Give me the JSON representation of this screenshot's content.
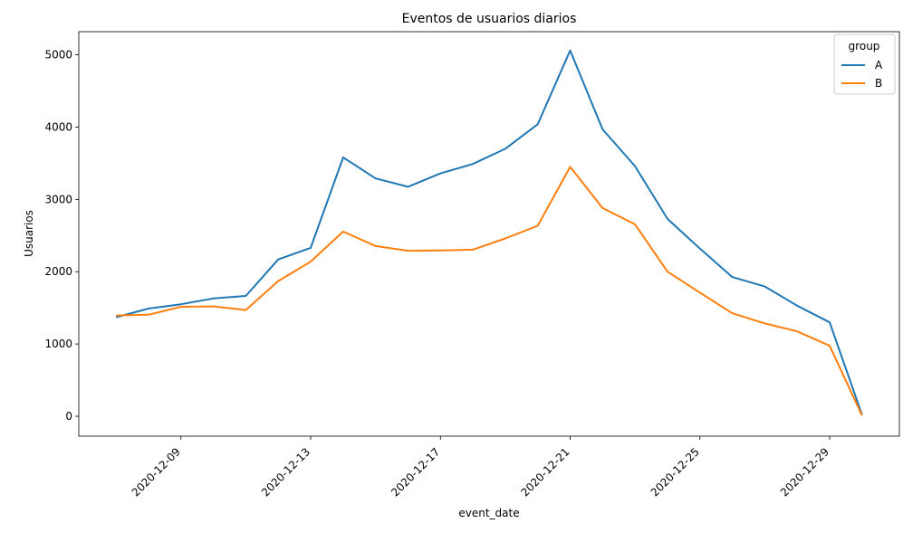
{
  "chart_data": {
    "type": "line",
    "title": "Eventos de usuarios diarios",
    "xlabel": "event_date",
    "ylabel": "Usuarios",
    "x": [
      "2020-12-07",
      "2020-12-08",
      "2020-12-09",
      "2020-12-10",
      "2020-12-11",
      "2020-12-12",
      "2020-12-13",
      "2020-12-14",
      "2020-12-15",
      "2020-12-16",
      "2020-12-17",
      "2020-12-18",
      "2020-12-19",
      "2020-12-20",
      "2020-12-21",
      "2020-12-22",
      "2020-12-23",
      "2020-12-24",
      "2020-12-25",
      "2020-12-26",
      "2020-12-27",
      "2020-12-28",
      "2020-12-29",
      "2020-12-30"
    ],
    "x_ticks": [
      "2020-12-09",
      "2020-12-13",
      "2020-12-17",
      "2020-12-21",
      "2020-12-25",
      "2020-12-29"
    ],
    "y_ticks": [
      0,
      1000,
      2000,
      3000,
      4000,
      5000
    ],
    "ylim": [
      -275,
      5320
    ],
    "series": [
      {
        "name": "A",
        "color": "#1f77b4",
        "values": [
          1370,
          1490,
          1550,
          1630,
          1665,
          2170,
          2330,
          3580,
          3290,
          3175,
          3360,
          3490,
          3700,
          4040,
          5060,
          3970,
          3460,
          2730,
          2320,
          1925,
          1795,
          1530,
          1300,
          20
        ]
      },
      {
        "name": "B",
        "color": "#ff7f0e",
        "values": [
          1395,
          1405,
          1515,
          1520,
          1470,
          1870,
          2140,
          2555,
          2355,
          2290,
          2295,
          2305,
          2460,
          2635,
          3450,
          2880,
          2655,
          2000,
          1710,
          1425,
          1285,
          1175,
          975,
          10
        ]
      }
    ],
    "legend": {
      "title": "group",
      "placement": "top-right"
    },
    "grid": false
  }
}
